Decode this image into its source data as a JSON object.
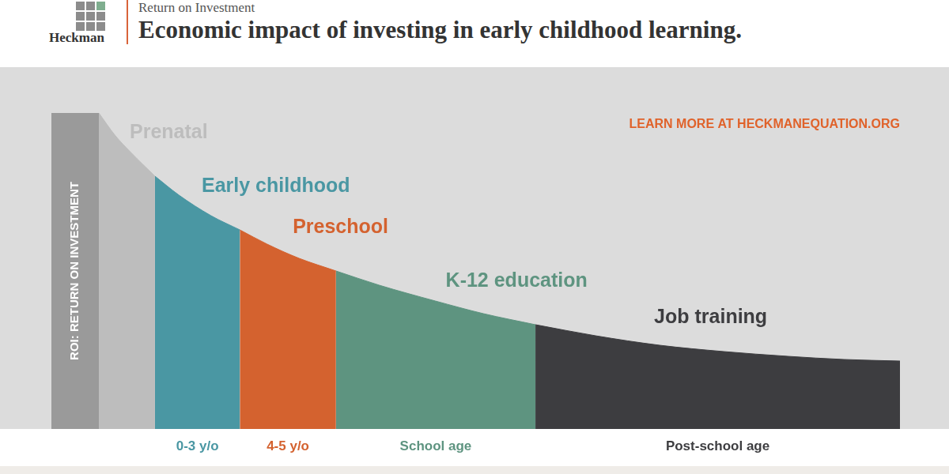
{
  "header": {
    "overline": "Return on Investment",
    "brand": "Heckman"
  },
  "chart_data": {
    "type": "area",
    "title": "Economic impact of investing in early childhood learning.",
    "ylabel": "ROI: RETURN ON INVESTMENT",
    "note": "LEARN MORE AT HECKMANEQUATION.ORG",
    "x": [
      0,
      2,
      4,
      7,
      10,
      14,
      17.6,
      21,
      25,
      29.6,
      35,
      42,
      48,
      54.5,
      62,
      70,
      78,
      86,
      93,
      100
    ],
    "series": [
      {
        "name": "Prenatal",
        "color": "#bdbdbd",
        "values": [
          100,
          93,
          87.5,
          80,
          null,
          null,
          null,
          null,
          null,
          null,
          null,
          null,
          null,
          null,
          null,
          null,
          null,
          null,
          null,
          null
        ]
      },
      {
        "name": "Early childhood",
        "color": "#4a97a3",
        "period": "0-3 y/o",
        "values": [
          null,
          null,
          null,
          80,
          74,
          67.5,
          63,
          null,
          null,
          null,
          null,
          null,
          null,
          null,
          null,
          null,
          null,
          null,
          null,
          null
        ]
      },
      {
        "name": "Preschool",
        "color": "#d4622f",
        "period": "4-5 y/o",
        "values": [
          null,
          null,
          null,
          null,
          null,
          null,
          63,
          58.5,
          54,
          50,
          null,
          null,
          null,
          null,
          null,
          null,
          null,
          null,
          null,
          null
        ]
      },
      {
        "name": "K-12 education",
        "color": "#5e9480",
        "period": "School age",
        "values": [
          null,
          null,
          null,
          null,
          null,
          null,
          null,
          null,
          null,
          50,
          45.5,
          40.5,
          36.5,
          33,
          null,
          null,
          null,
          null,
          null,
          null
        ]
      },
      {
        "name": "Job training",
        "color": "#3d3d40",
        "period": "Post-school age",
        "values": [
          null,
          null,
          null,
          null,
          null,
          null,
          null,
          null,
          null,
          null,
          null,
          null,
          null,
          33,
          29.5,
          26.5,
          24.5,
          23,
          22,
          21.5
        ]
      }
    ],
    "xlim": [
      0,
      100
    ],
    "ylim": [
      0,
      100
    ],
    "grid": false,
    "tick_labels": false
  }
}
